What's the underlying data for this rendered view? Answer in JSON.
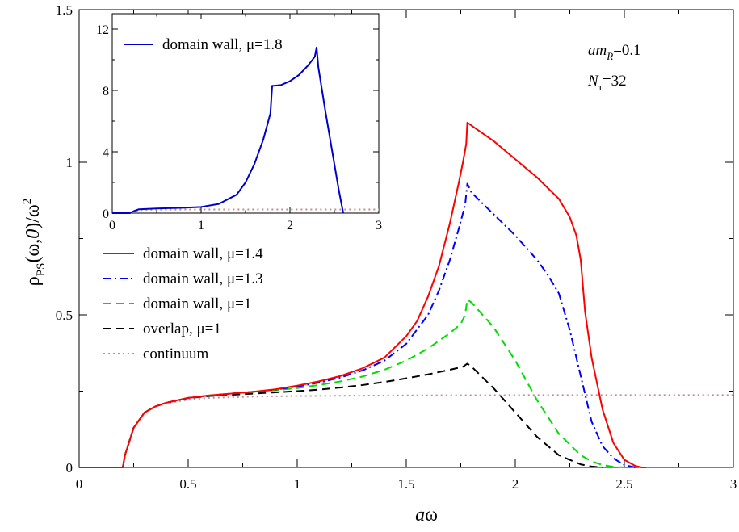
{
  "chart_data": [
    {
      "type": "line",
      "xlabel": "aω",
      "ylabel": "ρPS(ω,0)/ω²",
      "xlim": [
        0,
        3
      ],
      "ylim": [
        0,
        1.5
      ],
      "x_ticks": [
        0,
        0.5,
        1,
        1.5,
        2,
        2.5,
        3
      ],
      "x_tick_labels": [
        "0",
        "0.5",
        "1",
        "1.5",
        "2",
        "2.5",
        "3"
      ],
      "y_ticks": [
        0,
        0.5,
        1,
        1.5
      ],
      "y_tick_labels": [
        "0",
        "0.5",
        "1",
        "1.5"
      ],
      "grid": false,
      "legend_position": "center-left",
      "annotations": [
        "amR=0.1",
        "Nτ=32"
      ],
      "series": [
        {
          "name": "domain wall, μ=1.4",
          "color": "#ff0000",
          "dash": "solid",
          "x": [
            0,
            0.2,
            0.21,
            0.25,
            0.3,
            0.35,
            0.4,
            0.5,
            0.6,
            0.7,
            0.8,
            0.9,
            1.0,
            1.1,
            1.2,
            1.3,
            1.4,
            1.5,
            1.55,
            1.6,
            1.65,
            1.7,
            1.74,
            1.76,
            1.775,
            1.78,
            1.8,
            1.9,
            2.0,
            2.1,
            2.2,
            2.25,
            2.28,
            2.3,
            2.32,
            2.35,
            2.4,
            2.45,
            2.5,
            2.55,
            2.58,
            2.6
          ],
          "y": [
            0,
            0,
            0.04,
            0.13,
            0.18,
            0.2,
            0.212,
            0.228,
            0.236,
            0.242,
            0.248,
            0.256,
            0.268,
            0.282,
            0.3,
            0.325,
            0.36,
            0.43,
            0.48,
            0.56,
            0.66,
            0.8,
            0.93,
            1.0,
            1.06,
            1.13,
            1.12,
            1.07,
            1.01,
            0.95,
            0.88,
            0.82,
            0.76,
            0.68,
            0.51,
            0.36,
            0.19,
            0.08,
            0.025,
            0.005,
            0,
            0
          ]
        },
        {
          "name": "domain wall, μ=1.3",
          "color": "#0000ff",
          "dash": "dashdot",
          "x": [
            0,
            0.2,
            0.21,
            0.25,
            0.3,
            0.35,
            0.4,
            0.5,
            0.6,
            0.7,
            0.8,
            0.9,
            1.0,
            1.1,
            1.2,
            1.3,
            1.4,
            1.5,
            1.6,
            1.65,
            1.7,
            1.74,
            1.77,
            1.78,
            1.8,
            1.9,
            2.0,
            2.1,
            2.15,
            2.2,
            2.25,
            2.3,
            2.35,
            2.4,
            2.45,
            2.5,
            2.55
          ],
          "y": [
            0,
            0,
            0.04,
            0.13,
            0.18,
            0.2,
            0.212,
            0.228,
            0.236,
            0.242,
            0.248,
            0.255,
            0.265,
            0.278,
            0.295,
            0.318,
            0.35,
            0.405,
            0.5,
            0.58,
            0.68,
            0.78,
            0.86,
            0.93,
            0.9,
            0.83,
            0.76,
            0.68,
            0.63,
            0.57,
            0.45,
            0.3,
            0.15,
            0.07,
            0.03,
            0.008,
            0
          ]
        },
        {
          "name": "domain wall, μ=1",
          "color": "#00dd00",
          "dash": "dashed",
          "x": [
            0,
            0.2,
            0.21,
            0.25,
            0.3,
            0.35,
            0.4,
            0.5,
            0.6,
            0.7,
            0.8,
            0.9,
            1.0,
            1.1,
            1.2,
            1.3,
            1.4,
            1.5,
            1.6,
            1.7,
            1.75,
            1.77,
            1.78,
            1.8,
            1.9,
            2.0,
            2.1,
            2.2,
            2.3,
            2.35,
            2.4,
            2.45,
            2.5
          ],
          "y": [
            0,
            0,
            0.04,
            0.13,
            0.18,
            0.2,
            0.212,
            0.228,
            0.236,
            0.242,
            0.247,
            0.253,
            0.26,
            0.27,
            0.282,
            0.298,
            0.32,
            0.35,
            0.39,
            0.44,
            0.47,
            0.5,
            0.55,
            0.54,
            0.46,
            0.35,
            0.22,
            0.11,
            0.04,
            0.02,
            0.008,
            0.002,
            0
          ]
        },
        {
          "name": "overlap, μ=1",
          "color": "#000000",
          "dash": "dashed",
          "x": [
            0,
            0.2,
            0.21,
            0.25,
            0.3,
            0.35,
            0.4,
            0.5,
            0.6,
            0.7,
            0.8,
            0.9,
            1.0,
            1.1,
            1.2,
            1.3,
            1.4,
            1.5,
            1.6,
            1.7,
            1.76,
            1.78,
            1.8,
            1.9,
            2.0,
            2.1,
            2.2,
            2.3,
            2.35,
            2.4
          ],
          "y": [
            0,
            0,
            0.04,
            0.13,
            0.18,
            0.2,
            0.212,
            0.227,
            0.234,
            0.238,
            0.242,
            0.246,
            0.25,
            0.255,
            0.262,
            0.27,
            0.28,
            0.292,
            0.305,
            0.32,
            0.33,
            0.34,
            0.33,
            0.26,
            0.18,
            0.1,
            0.04,
            0.01,
            0.003,
            0
          ]
        },
        {
          "name": "continuum",
          "color": "#bc8f8f",
          "dash": "dotted",
          "x": [
            0,
            0.2,
            0.21,
            0.25,
            0.3,
            0.35,
            0.4,
            0.5,
            0.6,
            0.8,
            1.0,
            1.5,
            2.0,
            2.5,
            3.0
          ],
          "y": [
            0,
            0,
            0.04,
            0.13,
            0.18,
            0.2,
            0.21,
            0.222,
            0.228,
            0.232,
            0.234,
            0.236,
            0.237,
            0.237,
            0.237
          ]
        }
      ]
    },
    {
      "type": "line",
      "xlabel": "",
      "ylabel": "",
      "xlim": [
        0,
        3
      ],
      "ylim": [
        0,
        13
      ],
      "x_ticks": [
        0,
        1,
        2,
        3
      ],
      "x_tick_labels": [
        "0",
        "1",
        "2",
        "3"
      ],
      "y_ticks": [
        0,
        4,
        8,
        12
      ],
      "y_tick_labels": [
        "0",
        "4",
        "8",
        "12"
      ],
      "grid": false,
      "legend_position": "top-left",
      "series": [
        {
          "name": "domain wall, μ=1.8",
          "color": "#0000cc",
          "dash": "solid",
          "x": [
            0,
            0.2,
            0.25,
            0.3,
            0.5,
            0.8,
            1.0,
            1.2,
            1.4,
            1.5,
            1.6,
            1.7,
            1.78,
            1.8,
            1.82,
            1.9,
            2.0,
            2.1,
            2.2,
            2.28,
            2.3,
            2.32,
            2.4,
            2.5,
            2.55,
            2.6
          ],
          "y": [
            0,
            0,
            0.15,
            0.25,
            0.3,
            0.35,
            0.4,
            0.6,
            1.2,
            2.0,
            3.2,
            4.8,
            6.5,
            8.3,
            8.3,
            8.35,
            8.6,
            9.0,
            9.6,
            10.2,
            10.8,
            9.5,
            6.6,
            3.2,
            1.5,
            0
          ]
        },
        {
          "color": "#bc8f8f",
          "dash": "dotted",
          "x": [
            0,
            0.2,
            0.3,
            0.5,
            1.0,
            2.0,
            3.0
          ],
          "y": [
            0,
            0,
            0.2,
            0.23,
            0.236,
            0.237,
            0.237
          ]
        }
      ]
    }
  ]
}
